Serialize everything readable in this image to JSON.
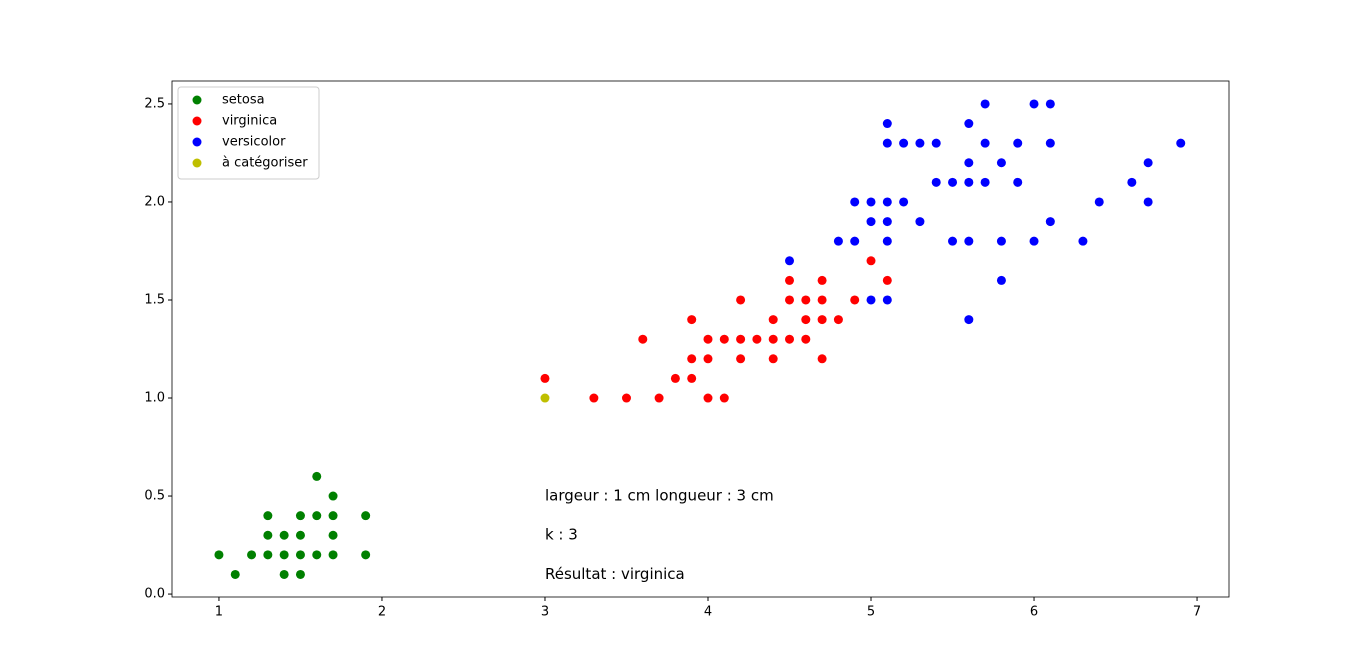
{
  "chart_data": {
    "type": "scatter",
    "xlim": [
      0.712,
      7.196
    ],
    "ylim": [
      -0.015,
      2.617
    ],
    "xticks": [
      1,
      2,
      3,
      4,
      5,
      6,
      7
    ],
    "yticks": [
      {
        "value": 0,
        "label": "0.0"
      },
      0.5,
      {
        "value": 1,
        "label": "1.0"
      },
      1.5,
      {
        "value": 2,
        "label": "2.0"
      },
      2.5
    ],
    "legend": "upper left",
    "series": [
      {
        "name": "setosa",
        "color": "green",
        "x": [
          1.0,
          1.1,
          1.2,
          1.3,
          1.3,
          1.3,
          1.4,
          1.4,
          1.4,
          1.5,
          1.5,
          1.5,
          1.5,
          1.6,
          1.6,
          1.6,
          1.7,
          1.7,
          1.7,
          1.7,
          1.9,
          1.9
        ],
        "values": [
          0.2,
          0.1,
          0.2,
          0.2,
          0.3,
          0.4,
          0.1,
          0.2,
          0.3,
          0.1,
          0.2,
          0.3,
          0.4,
          0.2,
          0.4,
          0.6,
          0.2,
          0.3,
          0.4,
          0.5,
          0.2,
          0.4
        ]
      },
      {
        "name": "virginica",
        "color": "red",
        "x": [
          3.0,
          3.3,
          3.5,
          3.6,
          3.7,
          3.8,
          3.9,
          3.9,
          3.9,
          4.0,
          4.0,
          4.0,
          4.1,
          4.1,
          4.2,
          4.2,
          4.2,
          4.3,
          4.4,
          4.4,
          4.4,
          4.5,
          4.5,
          4.5,
          4.6,
          4.6,
          4.6,
          4.7,
          4.7,
          4.7,
          4.7,
          4.8,
          4.9,
          5.0,
          5.1
        ],
        "values": [
          1.1,
          1.0,
          1.0,
          1.3,
          1.0,
          1.1,
          1.1,
          1.2,
          1.4,
          1.0,
          1.2,
          1.3,
          1.0,
          1.3,
          1.2,
          1.3,
          1.5,
          1.3,
          1.2,
          1.3,
          1.4,
          1.3,
          1.5,
          1.6,
          1.3,
          1.4,
          1.5,
          1.2,
          1.4,
          1.5,
          1.6,
          1.4,
          1.5,
          1.7,
          1.6
        ]
      },
      {
        "name": "versicolor",
        "color": "blue",
        "x": [
          4.5,
          4.8,
          4.9,
          4.9,
          5.0,
          5.0,
          5.0,
          5.1,
          5.1,
          5.1,
          5.1,
          5.1,
          5.1,
          5.2,
          5.2,
          5.3,
          5.3,
          5.4,
          5.4,
          5.5,
          5.5,
          5.6,
          5.6,
          5.6,
          5.6,
          5.6,
          5.7,
          5.7,
          5.7,
          5.8,
          5.8,
          5.8,
          5.9,
          5.9,
          6.0,
          6.0,
          6.1,
          6.1,
          6.1,
          6.3,
          6.4,
          6.6,
          6.7,
          6.7,
          6.9
        ],
        "values": [
          1.7,
          1.8,
          1.8,
          2.0,
          1.5,
          1.9,
          2.0,
          1.5,
          1.8,
          1.9,
          2.0,
          2.3,
          2.4,
          2.0,
          2.3,
          1.9,
          2.3,
          2.1,
          2.3,
          1.8,
          2.1,
          1.4,
          1.8,
          2.1,
          2.2,
          2.4,
          2.1,
          2.3,
          2.5,
          1.6,
          1.8,
          2.2,
          2.1,
          2.3,
          1.8,
          2.5,
          1.9,
          2.3,
          2.5,
          1.8,
          2.0,
          2.1,
          2.0,
          2.2,
          2.3
        ]
      },
      {
        "name": "à catégoriser",
        "color": "#bfbf00",
        "x": [
          3
        ],
        "values": [
          1
        ]
      }
    ],
    "annotations": [
      "largeur : 1 cm longueur : 3 cm",
      "k : 3",
      "Résultat : virginica"
    ]
  }
}
